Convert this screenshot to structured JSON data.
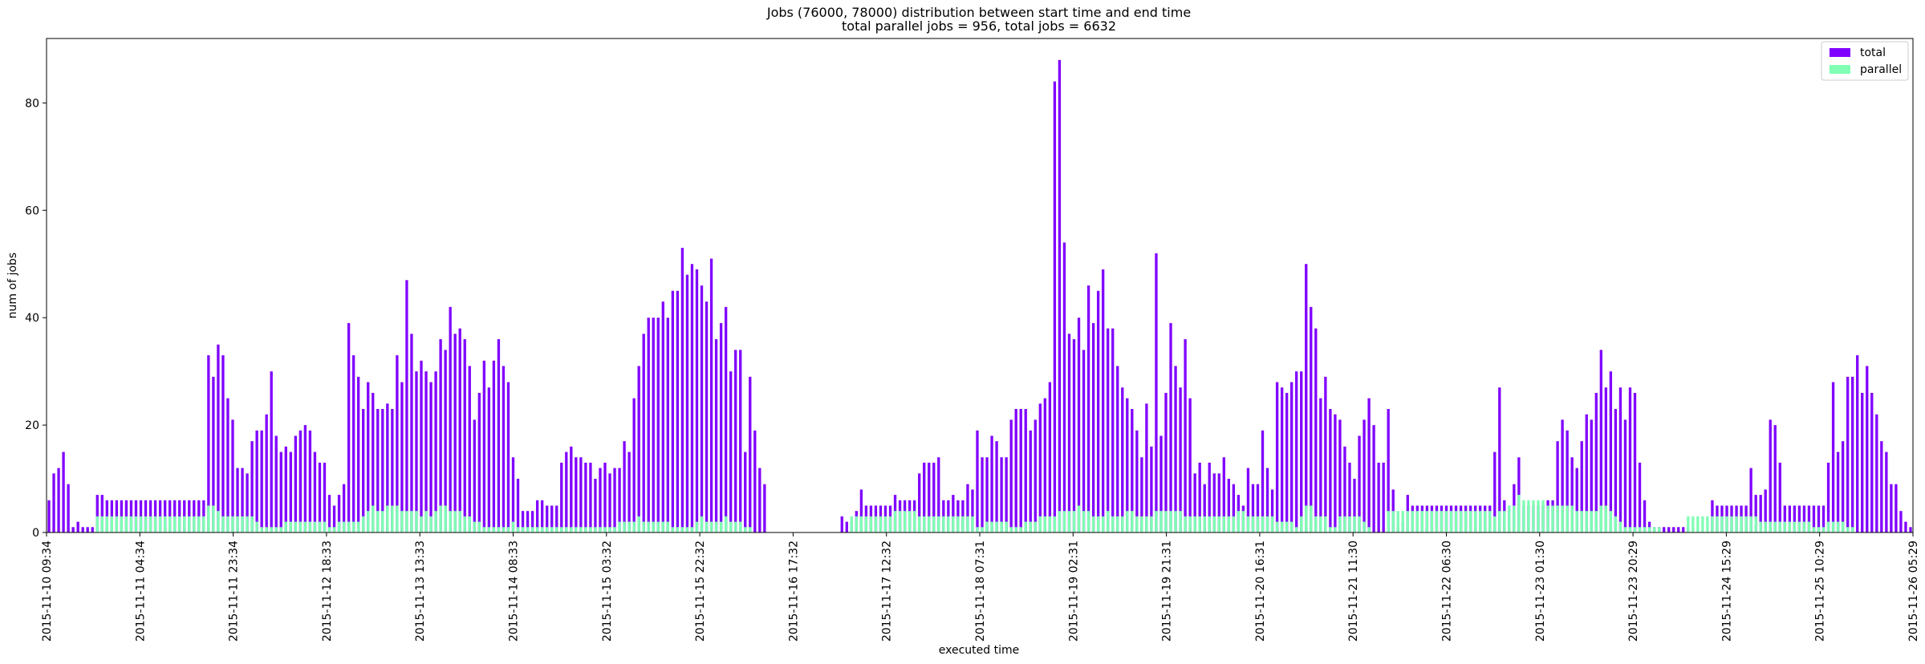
{
  "chart_data": {
    "type": "bar",
    "title": "Jobs (76000, 78000) distribution between start time and end time",
    "subtitle": "total parallel jobs = 956, total jobs = 6632",
    "xlabel": "executed time",
    "ylabel": "num of jobs",
    "ylim": [
      0,
      92
    ],
    "yticks": [
      0,
      20,
      40,
      60,
      80
    ],
    "grid": false,
    "legend_position": "top-right",
    "x_start": "2015-11-10 09:34",
    "bin_minutes": 60,
    "xtick_labels": [
      "2015-11-10 09:34",
      "2015-11-11 04:34",
      "2015-11-11 23:34",
      "2015-11-12 18:33",
      "2015-11-13 13:33",
      "2015-11-14 08:33",
      "2015-11-15 03:32",
      "2015-11-15 22:32",
      "2015-11-16 17:32",
      "2015-11-17 12:32",
      "2015-11-18 07:31",
      "2015-11-19 02:31",
      "2015-11-19 21:31",
      "2015-11-20 16:31",
      "2015-11-21 11:30",
      "2015-11-22 06:30",
      "2015-11-23 01:30",
      "2015-11-23 20:29",
      "2015-11-24 15:29",
      "2015-11-25 10:29",
      "2015-11-26 05:29"
    ],
    "series": [
      {
        "name": "total",
        "color": "#8000ff",
        "values": [
          6,
          11,
          12,
          15,
          9,
          1,
          2,
          1,
          1,
          1,
          7,
          7,
          6,
          6,
          6,
          6,
          6,
          6,
          6,
          6,
          6,
          6,
          6,
          6,
          6,
          6,
          6,
          6,
          6,
          6,
          6,
          6,
          6,
          33,
          29,
          35,
          33,
          25,
          21,
          12,
          12,
          11,
          17,
          19,
          19,
          22,
          30,
          18,
          15,
          16,
          15,
          18,
          19,
          20,
          19,
          15,
          13,
          13,
          7,
          5,
          7,
          9,
          39,
          33,
          29,
          23,
          28,
          26,
          23,
          23,
          24,
          23,
          33,
          28,
          47,
          37,
          30,
          32,
          30,
          28,
          30,
          36,
          34,
          42,
          37,
          38,
          36,
          31,
          21,
          26,
          32,
          27,
          32,
          36,
          31,
          28,
          14,
          10,
          4,
          4,
          4,
          6,
          6,
          5,
          5,
          5,
          13,
          15,
          16,
          14,
          14,
          13,
          13,
          10,
          12,
          13,
          11,
          12,
          12,
          17,
          15,
          25,
          31,
          37,
          40,
          40,
          40,
          43,
          40,
          45,
          45,
          53,
          48,
          50,
          49,
          46,
          43,
          51,
          36,
          39,
          42,
          30,
          34,
          34,
          15,
          29,
          19,
          12,
          9,
          0,
          0,
          0,
          0,
          0,
          0,
          0,
          0,
          0,
          0,
          0,
          0,
          0,
          0,
          0,
          3,
          2,
          2,
          4,
          8,
          5,
          5,
          5,
          5,
          5,
          5,
          7,
          6,
          6,
          6,
          6,
          11,
          13,
          13,
          13,
          14,
          6,
          6,
          7,
          6,
          6,
          9,
          8,
          19,
          14,
          14,
          18,
          17,
          14,
          14,
          21,
          23,
          23,
          23,
          19,
          21,
          24,
          25,
          28,
          84,
          88,
          54,
          37,
          36,
          40,
          34,
          46,
          39,
          45,
          49,
          38,
          38,
          31,
          27,
          25,
          23,
          19,
          14,
          24,
          16,
          52,
          18,
          26,
          39,
          31,
          27,
          36,
          25,
          11,
          13,
          9,
          13,
          11,
          11,
          14,
          10,
          9,
          7,
          5,
          12,
          9,
          9,
          19,
          12,
          8,
          28,
          27,
          26,
          28,
          30,
          30,
          50,
          42,
          38,
          25,
          29,
          23,
          22,
          21,
          16,
          13,
          10,
          18,
          21,
          25,
          20,
          13,
          13,
          23,
          8,
          1,
          2,
          7,
          5,
          5,
          5,
          5,
          5,
          5,
          5,
          5,
          5,
          5,
          5,
          5,
          5,
          5,
          5,
          5,
          5,
          15,
          27,
          6,
          5,
          9,
          14,
          5,
          5,
          5,
          5,
          5,
          6,
          6,
          17,
          21,
          19,
          14,
          12,
          17,
          22,
          21,
          26,
          34,
          27,
          30,
          23,
          27,
          21,
          27,
          26,
          13,
          6,
          2,
          1,
          1,
          1,
          1,
          1,
          1,
          1,
          1,
          0,
          0,
          0,
          0,
          6,
          5,
          5,
          5,
          5,
          5,
          5,
          5,
          12,
          7,
          7,
          8,
          21,
          20,
          13,
          5,
          5,
          5,
          5,
          5,
          5,
          5,
          5,
          5,
          13,
          28,
          15,
          17,
          29,
          29,
          33,
          26,
          31,
          26,
          22,
          17,
          15,
          9,
          9,
          4,
          2,
          1
        ]
      },
      {
        "name": "parallel",
        "color": "#80ffb4",
        "values": [
          0,
          0,
          0,
          0,
          0,
          0,
          0,
          0,
          0,
          0,
          3,
          3,
          3,
          3,
          3,
          3,
          3,
          3,
          3,
          3,
          3,
          3,
          3,
          3,
          3,
          3,
          3,
          3,
          3,
          3,
          3,
          3,
          3,
          5,
          5,
          4,
          3,
          3,
          3,
          3,
          3,
          3,
          3,
          2,
          1,
          1,
          1,
          1,
          1,
          2,
          2,
          2,
          2,
          2,
          2,
          2,
          2,
          2,
          1,
          1,
          2,
          2,
          2,
          2,
          2,
          3,
          4,
          5,
          4,
          4,
          5,
          5,
          5,
          4,
          4,
          4,
          4,
          3,
          4,
          3,
          4,
          5,
          5,
          4,
          4,
          4,
          3,
          3,
          2,
          2,
          1,
          1,
          1,
          1,
          1,
          1,
          2,
          1,
          1,
          1,
          1,
          1,
          1,
          1,
          1,
          1,
          1,
          1,
          1,
          1,
          1,
          1,
          1,
          1,
          1,
          1,
          1,
          1,
          2,
          2,
          2,
          2,
          3,
          2,
          2,
          2,
          2,
          2,
          2,
          1,
          1,
          1,
          1,
          1,
          2,
          3,
          2,
          2,
          2,
          2,
          3,
          2,
          2,
          2,
          1,
          1,
          0,
          0,
          0,
          0,
          0,
          0,
          0,
          0,
          0,
          0,
          0,
          0,
          0,
          0,
          0,
          0,
          0,
          0,
          0,
          0,
          3,
          3,
          3,
          3,
          3,
          3,
          3,
          3,
          3,
          4,
          4,
          4,
          4,
          4,
          3,
          3,
          3,
          3,
          3,
          3,
          3,
          3,
          3,
          3,
          3,
          3,
          1,
          1,
          2,
          2,
          2,
          2,
          2,
          1,
          1,
          1,
          2,
          2,
          2,
          3,
          3,
          3,
          3,
          4,
          4,
          4,
          4,
          5,
          4,
          4,
          3,
          3,
          3,
          4,
          3,
          3,
          3,
          4,
          4,
          3,
          3,
          3,
          3,
          4,
          4,
          4,
          4,
          4,
          4,
          3,
          3,
          3,
          3,
          3,
          3,
          3,
          3,
          3,
          3,
          3,
          4,
          4,
          3,
          3,
          3,
          3,
          3,
          3,
          2,
          2,
          2,
          2,
          1,
          3,
          5,
          5,
          3,
          3,
          3,
          1,
          1,
          3,
          3,
          3,
          3,
          3,
          2,
          1,
          0,
          0,
          0,
          4,
          4,
          4,
          4,
          4,
          4,
          4,
          4,
          4,
          4,
          4,
          4,
          4,
          4,
          4,
          4,
          4,
          4,
          4,
          4,
          4,
          4,
          3,
          4,
          4,
          5,
          5,
          7,
          6,
          6,
          6,
          6,
          6,
          5,
          5,
          5,
          5,
          5,
          5,
          4,
          4,
          4,
          4,
          4,
          5,
          5,
          4,
          3,
          2,
          1,
          1,
          1,
          1,
          1,
          1,
          1,
          1,
          0,
          0,
          0,
          0,
          0,
          3,
          3,
          3,
          3,
          3,
          3,
          3,
          3,
          3,
          3,
          3,
          3,
          3,
          3,
          3,
          2,
          2,
          2,
          2,
          2,
          2,
          2,
          2,
          2,
          2,
          2,
          1,
          1,
          1,
          2,
          2,
          2,
          2,
          1,
          1,
          0,
          0,
          0,
          0,
          0
        ]
      }
    ]
  }
}
